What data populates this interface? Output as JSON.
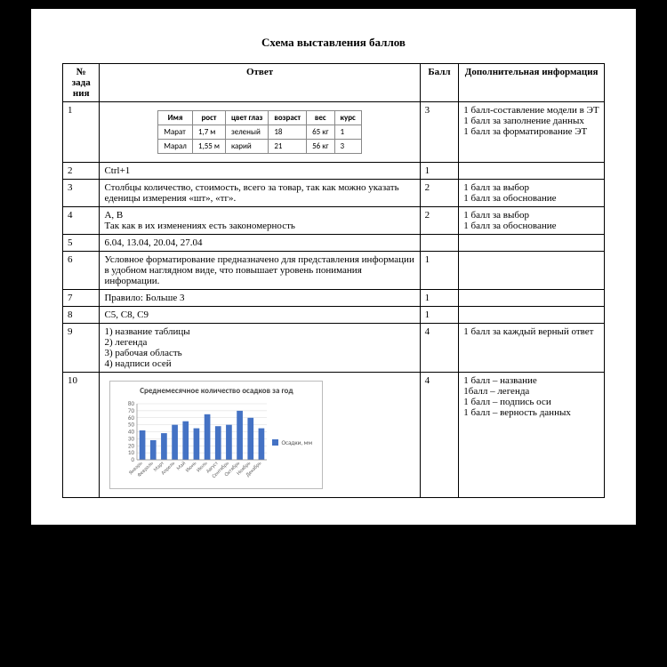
{
  "title": "Схема выставления баллов",
  "headers": {
    "num": "№ зада ния",
    "answer": "Ответ",
    "score": "Балл",
    "info": "Дополнительная информация"
  },
  "innerTable": {
    "headers": [
      "Имя",
      "рост",
      "цвет глаз",
      "возраст",
      "вес",
      "курс"
    ],
    "rows": [
      [
        "Марат",
        "1,7 м",
        "зеленый",
        "18",
        "65 кг",
        "1"
      ],
      [
        "Марал",
        "1,55 м",
        "карий",
        "21",
        "56 кг",
        "3"
      ]
    ]
  },
  "rows": [
    {
      "n": "1",
      "score": "3",
      "info": "1 балл-составление модели в ЭТ\n1 балл за заполнение данных\n1 балл за форматирование ЭТ",
      "type": "inner"
    },
    {
      "n": "2",
      "answer": "Ctrl+1",
      "score": "1",
      "info": ""
    },
    {
      "n": "3",
      "answer": "Столбцы количество, стоимость, всего за товар, так как можно указать еденицы измерения «шт», «тг».",
      "score": "2",
      "info": "1 балл за выбор\n1 балл за обоснование",
      "justify": true
    },
    {
      "n": "4",
      "answer": "A, B\nТак как в их изменениях есть закономерность",
      "score": "2",
      "info": "1 балл за выбор\n1 балл за обоснование"
    },
    {
      "n": "5",
      "answer": "6.04, 13.04, 20.04, 27.04",
      "score": "",
      "info": ""
    },
    {
      "n": "6",
      "answer": "Условное форматирование предназначено для представления информации в удобном наглядном виде, что повышает уровень понимания информации.",
      "score": "1",
      "info": "",
      "justify": true
    },
    {
      "n": "7",
      "answer": "Правило: Больше 3",
      "score": "1",
      "info": ""
    },
    {
      "n": "8",
      "answer": "С5, С8, С9",
      "score": "1",
      "info": ""
    },
    {
      "n": "9",
      "answer": "1) название таблицы\n2) легенда\n3) рабочая область\n4) надписи осей",
      "score": "4",
      "info": "1 балл за каждый верный ответ"
    },
    {
      "n": "10",
      "score": "4",
      "info": "1 балл – название\n1балл – легенда\n1 балл – подпись оси\n1 балл – верность данных",
      "type": "chart"
    }
  ],
  "chart": {
    "title": "Среднемесячное количество осадков за год",
    "type": "bar",
    "categories": [
      "Январь",
      "Февраль",
      "Март",
      "Апрель",
      "Май",
      "Июнь",
      "Июль",
      "Август",
      "Сентябрь",
      "Октябрь",
      "Ноябрь",
      "Декабрь"
    ],
    "values": [
      42,
      28,
      38,
      50,
      55,
      45,
      65,
      48,
      50,
      70,
      60,
      45
    ],
    "bar_color": "#4472c4",
    "grid_color": "#d9d9d9",
    "axis_color": "#888888",
    "background_color": "#ffffff",
    "ylim": [
      0,
      80
    ],
    "ytick_step": 10,
    "legend_label": "Осадки, мм",
    "title_fontsize": 9,
    "label_fontsize": 7,
    "bar_width": 0.55
  }
}
